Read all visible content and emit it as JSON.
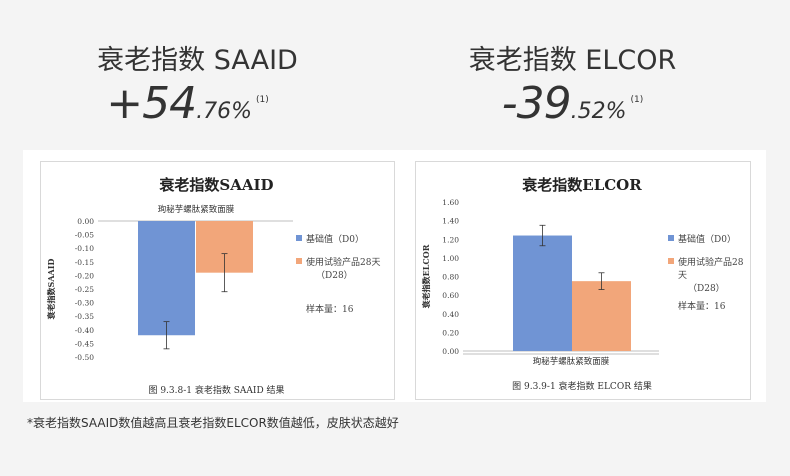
{
  "metrics": [
    {
      "title": "衰老指数 SAAID",
      "value_big": "+54",
      "value_small": ".76%",
      "note": "(1)"
    },
    {
      "title": "衰老指数 ELCOR",
      "value_big": "-39",
      "value_small": ".52%",
      "note": "(1)"
    }
  ],
  "footnote": "*衰老指数SAAID数值越高且衰老指数ELCOR数值越低，皮肤状态越好",
  "colors": {
    "base": "#7094d4",
    "test": "#f2a67a"
  },
  "chart_data": [
    {
      "type": "bar",
      "title": "衰老指数SAAID",
      "subtitle": "珣秘芋螺肽紧致面膜",
      "ylabel": "衰老指数SAAID",
      "ylim": [
        -0.5,
        0.0
      ],
      "yticks": [
        "0.00",
        "-0.05",
        "-0.10",
        "-0.15",
        "-0.20",
        "-0.25",
        "-0.30",
        "-0.35",
        "-0.40",
        "-0.45",
        "-0.50"
      ],
      "series": [
        {
          "name": "基础值（D0）",
          "value": -0.42,
          "error": 0.05
        },
        {
          "name": "使用试验产品28天（D28）",
          "value": -0.19,
          "error": 0.07
        }
      ],
      "legend": [
        "基础值（D0）",
        "使用试验产品28天",
        "（D28）"
      ],
      "sample_size": "样本量：16",
      "caption": "图 9.3.8-1  衰老指数 SAAID 结果"
    },
    {
      "type": "bar",
      "title": "衰老指数ELCOR",
      "xlabel": "珣秘芋螺肽紧致面膜",
      "ylabel": "衰老指数ELCOR",
      "ylim": [
        0.0,
        1.6
      ],
      "yticks": [
        "1.60",
        "1.40",
        "1.20",
        "1.00",
        "0.80",
        "0.60",
        "0.40",
        "0.20",
        "0.00"
      ],
      "series": [
        {
          "name": "基础值（D0）",
          "value": 1.24,
          "error": 0.11
        },
        {
          "name": "使用试验产品28天（D28）",
          "value": 0.75,
          "error": 0.09
        }
      ],
      "legend": [
        "基础值（D0）",
        "使用试验产品28天",
        "（D28）"
      ],
      "sample_size": "样本量：16",
      "caption": "图 9.3.9-1  衰老指数 ELCOR 结果"
    }
  ]
}
